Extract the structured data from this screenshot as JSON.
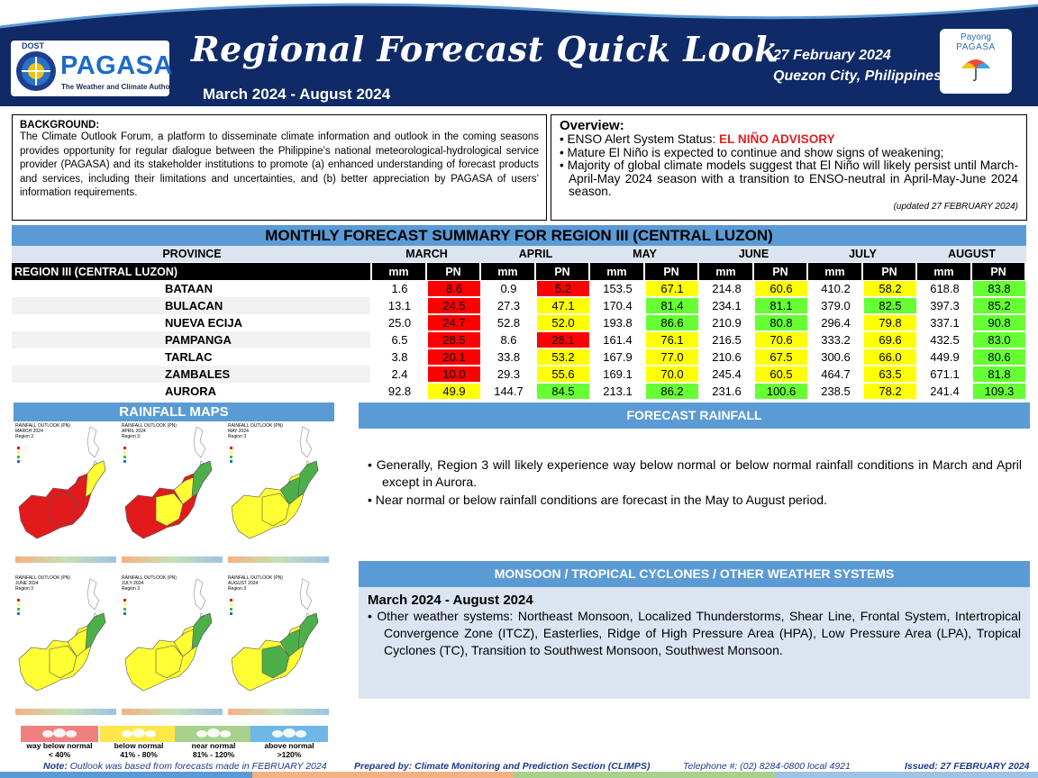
{
  "header": {
    "org_dost": "DOST",
    "org_name": "PAGASA",
    "org_tagline": "The Weather and Climate Authority",
    "title": "Regional Forecast Quick Look",
    "subtitle": "March 2024 - August 2024",
    "date": "27 February 2024",
    "place": "Quezon City, Philippines",
    "payong_line1": "Payong",
    "payong_line2": "PAGASA"
  },
  "background": {
    "title": "BACKGROUND:",
    "text": "The Climate Outlook Forum, a platform to disseminate climate information and outlook in the coming seasons provides opportunity for regular dialogue between the Philippine’s national meteorological-hydrological service provider (PAGASA) and its stakeholder institutions to promote (a) enhanced understanding of forecast products and services, including their limitations and uncertainties, and (b) better appreciation by PAGASA of users’ information requirements."
  },
  "overview": {
    "title": "Overview:",
    "enso_label": "ENSO Alert System Status: ",
    "enso_status": "EL NIÑO ADVISORY",
    "bullet2": "Mature El Niño is expected to continue and show signs of weakening;",
    "bullet3": "Majority of global climate models suggest that El Niño will likely persist until March-April-May 2024 season with a transition to ENSO-neutral in April-May-June 2024 season.",
    "updated": "(updated 27 FEBRUARY 2024)"
  },
  "table": {
    "title": "MONTHLY FORECAST SUMMARY FOR REGION III (CENTRAL LUZON)",
    "province_header": "PROVINCE",
    "region_label": "REGION III (CENTRAL LUZON)",
    "months": [
      "MARCH",
      "APRIL",
      "MAY",
      "JUNE",
      "JULY",
      "AUGUST"
    ],
    "sub_mm": "mm",
    "sub_pn": "PN",
    "rows": [
      {
        "province": "BATAAN",
        "mm": [
          "1.6",
          "0.9",
          "153.5",
          "214.8",
          "410.2",
          "618.8"
        ],
        "pn": [
          "8.6",
          "5.2",
          "67.1",
          "60.6",
          "58.2",
          "83.8"
        ]
      },
      {
        "province": "BULACAN",
        "mm": [
          "13.1",
          "27.3",
          "170.4",
          "234.1",
          "379.0",
          "397.3"
        ],
        "pn": [
          "24.5",
          "47.1",
          "81.4",
          "81.1",
          "82.5",
          "85.2"
        ]
      },
      {
        "province": "NUEVA ECIJA",
        "mm": [
          "25.0",
          "52.8",
          "193.8",
          "210.9",
          "296.4",
          "337.1"
        ],
        "pn": [
          "24.7",
          "52.0",
          "86.6",
          "80.8",
          "79.8",
          "90.8"
        ]
      },
      {
        "province": "PAMPANGA",
        "mm": [
          "6.5",
          "8.6",
          "161.4",
          "216.5",
          "333.2",
          "432.5"
        ],
        "pn": [
          "28.5",
          "28.1",
          "76.1",
          "70.6",
          "69.6",
          "83.0"
        ]
      },
      {
        "province": "TARLAC",
        "mm": [
          "3.8",
          "33.8",
          "167.9",
          "210.6",
          "300.6",
          "449.9"
        ],
        "pn": [
          "20.1",
          "53.2",
          "77.0",
          "67.5",
          "66.0",
          "80.6"
        ]
      },
      {
        "province": "ZAMBALES",
        "mm": [
          "2.4",
          "29.3",
          "169.1",
          "245.4",
          "464.7",
          "671.1"
        ],
        "pn": [
          "10.0",
          "55.6",
          "70.0",
          "60.5",
          "63.5",
          "81.8"
        ]
      },
      {
        "province": "AURORA",
        "mm": [
          "92.8",
          "144.7",
          "213.1",
          "231.6",
          "238.5",
          "241.4"
        ],
        "pn": [
          "49.9",
          "84.5",
          "86.2",
          "100.6",
          "78.2",
          "109.3"
        ]
      }
    ]
  },
  "maps": {
    "title": "RAINFALL MAPS",
    "tiles": [
      {
        "title": "RAINFALL OUTLOOK (PN)",
        "month": "MARCH 2024",
        "region": "Region 3"
      },
      {
        "title": "RAINFALL OUTLOOK (PN)",
        "month": "APRIL 2024",
        "region": "Region 3"
      },
      {
        "title": "RAINFALL OUTLOOK (PN)",
        "month": "MAY 2024",
        "region": "Region 3"
      },
      {
        "title": "RAINFALL OUTLOOK (PN)",
        "month": "JUNE 2024",
        "region": "Region 3"
      },
      {
        "title": "RAINFALL OUTLOOK (PN)",
        "month": "JULY 2024",
        "region": "Region 3"
      },
      {
        "title": "RAINFALL OUTLOOK (PN)",
        "month": "AUGUST 2024",
        "region": "Region 3"
      }
    ],
    "legend": [
      {
        "label": "way below normal",
        "range": "< 40%",
        "color": "#f08080"
      },
      {
        "label": "below normal",
        "range": "41% - 80%",
        "color": "#ffe74a"
      },
      {
        "label": "near normal",
        "range": "81% - 120%",
        "color": "#a9d18e"
      },
      {
        "label": "above normal",
        "range": ">120%",
        "color": "#6fb7e8"
      }
    ]
  },
  "forecast_rainfall": {
    "title": "FORECAST RAINFALL",
    "bullets": [
      "Generally, Region 3 will likely experience way below normal or below normal rainfall conditions in March and April except in Aurora.",
      "Near normal or below rainfall conditions are forecast in the May to August period."
    ]
  },
  "monsoon": {
    "title": "MONSOON  /  TROPICAL CYCLONES / OTHER WEATHER SYSTEMS",
    "period": "March 2024 - August 2024",
    "bullet": "Other weather systems: Northeast Monsoon, Localized Thunderstorms, Shear Line, Frontal System, Intertropical Convergence Zone (ITCZ), Easterlies, Ridge of High Pressure Area (HPA), Low Pressure Area (LPA), Tropical Cyclones (TC), Transition to Southwest Monsoon, Southwest Monsoon."
  },
  "footer": {
    "note_label": "Note:",
    "note_text": " Outlook was based from forecasts made in FEBRUARY 2024",
    "prepared": "Prepared by: Climate Monitoring and Prediction Section (CLIMPS)",
    "phone": "Telephone #: (02) 8284-0800 local 4921",
    "issued": "Issued: 27 FEBRUARY 2024"
  },
  "colors": {
    "header_navy": "#0f2a66",
    "section_blue": "#5b9bd5",
    "pn_way_below": "#ff0000",
    "pn_below": "#ffff00",
    "pn_near": "#66ff33"
  }
}
